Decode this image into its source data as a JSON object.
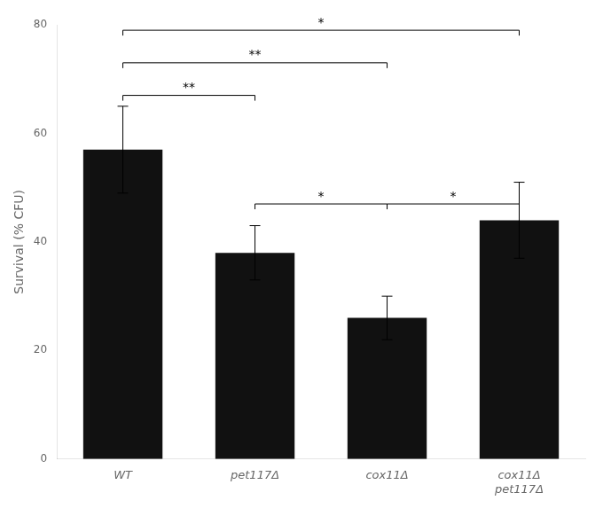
{
  "chart_data": {
    "type": "bar",
    "categories": [
      "WT",
      "pet117Δ",
      "cox11Δ",
      "cox11Δ\npet117Δ"
    ],
    "values": [
      57,
      38,
      26,
      44
    ],
    "errors": [
      8,
      5,
      4,
      7
    ],
    "color": "#111111",
    "ylabel": "Survival (% CFU)",
    "ylim": [
      0,
      80
    ],
    "yticks": [
      0,
      20,
      40,
      60,
      80
    ],
    "grid": false,
    "annotations": [
      {
        "x1": 0,
        "x2": 1,
        "y": 67,
        "label": "**"
      },
      {
        "x1": 0,
        "x2": 2,
        "y": 73,
        "label": "**"
      },
      {
        "x1": 0,
        "x2": 3,
        "y": 79,
        "label": "*"
      },
      {
        "x1": 1,
        "x2": 2,
        "y": 47,
        "label": "*"
      },
      {
        "x1": 2,
        "x2": 3,
        "y": 47,
        "label": "*"
      }
    ]
  }
}
